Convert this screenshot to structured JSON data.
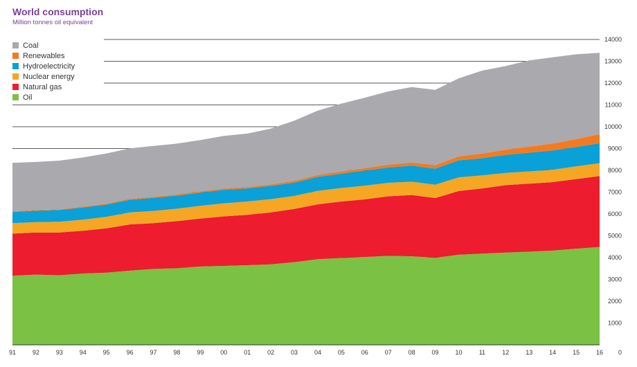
{
  "chart_data": {
    "type": "area",
    "stacked": true,
    "title": "World consumption",
    "subtitle": "Million tonnes oil equivalent",
    "categories": [
      "91",
      "92",
      "93",
      "94",
      "95",
      "96",
      "97",
      "98",
      "99",
      "00",
      "01",
      "02",
      "03",
      "04",
      "05",
      "06",
      "07",
      "08",
      "09",
      "10",
      "11",
      "12",
      "13",
      "14",
      "15",
      "16"
    ],
    "ylim": [
      0,
      14000
    ],
    "yticks": [
      0,
      1000,
      2000,
      3000,
      4000,
      5000,
      6000,
      7000,
      8000,
      9000,
      10000,
      11000,
      12000,
      13000,
      14000
    ],
    "series": [
      {
        "name": "Oil",
        "color": "#7bc143",
        "values": [
          3170,
          3220,
          3190,
          3270,
          3310,
          3400,
          3480,
          3510,
          3590,
          3620,
          3650,
          3690,
          3790,
          3930,
          3980,
          4030,
          4080,
          4060,
          3990,
          4130,
          4180,
          4230,
          4270,
          4320,
          4410,
          4490
        ]
      },
      {
        "name": "Natural gas",
        "color": "#ed1c2e",
        "values": [
          1930,
          1930,
          1960,
          1960,
          2030,
          2120,
          2100,
          2160,
          2200,
          2270,
          2310,
          2380,
          2440,
          2510,
          2590,
          2640,
          2730,
          2810,
          2740,
          2920,
          2990,
          3090,
          3120,
          3140,
          3190,
          3250
        ]
      },
      {
        "name": "Nuclear energy",
        "color": "#f5a623",
        "values": [
          480,
          480,
          490,
          510,
          530,
          550,
          560,
          570,
          580,
          600,
          610,
          610,
          600,
          620,
          620,
          630,
          620,
          610,
          610,
          630,
          600,
          560,
          560,
          570,
          580,
          590
        ]
      },
      {
        "name": "Hydroelectricity",
        "color": "#0aa0d8",
        "values": [
          510,
          520,
          540,
          560,
          560,
          580,
          600,
          600,
          610,
          620,
          600,
          610,
          610,
          640,
          660,
          690,
          700,
          740,
          740,
          780,
          790,
          830,
          860,
          880,
          890,
          910
        ]
      },
      {
        "name": "Renewables",
        "color": "#f47a20",
        "values": [
          35,
          35,
          35,
          40,
          45,
          48,
          50,
          55,
          60,
          60,
          65,
          70,
          85,
          90,
          100,
          110,
          130,
          140,
          160,
          180,
          210,
          240,
          280,
          320,
          360,
          420
        ]
      },
      {
        "name": "Coal",
        "color": "#aaa9ad",
        "values": [
          2220,
          2200,
          2230,
          2250,
          2300,
          2310,
          2330,
          2330,
          2350,
          2410,
          2450,
          2550,
          2750,
          2950,
          3110,
          3230,
          3360,
          3460,
          3450,
          3580,
          3800,
          3830,
          3950,
          3950,
          3890,
          3730
        ]
      }
    ],
    "legend_order": [
      "Coal",
      "Renewables",
      "Hydroelectricity",
      "Nuclear energy",
      "Natural gas",
      "Oil"
    ],
    "legend_position": "top-left",
    "gridlines": "horizontal"
  }
}
